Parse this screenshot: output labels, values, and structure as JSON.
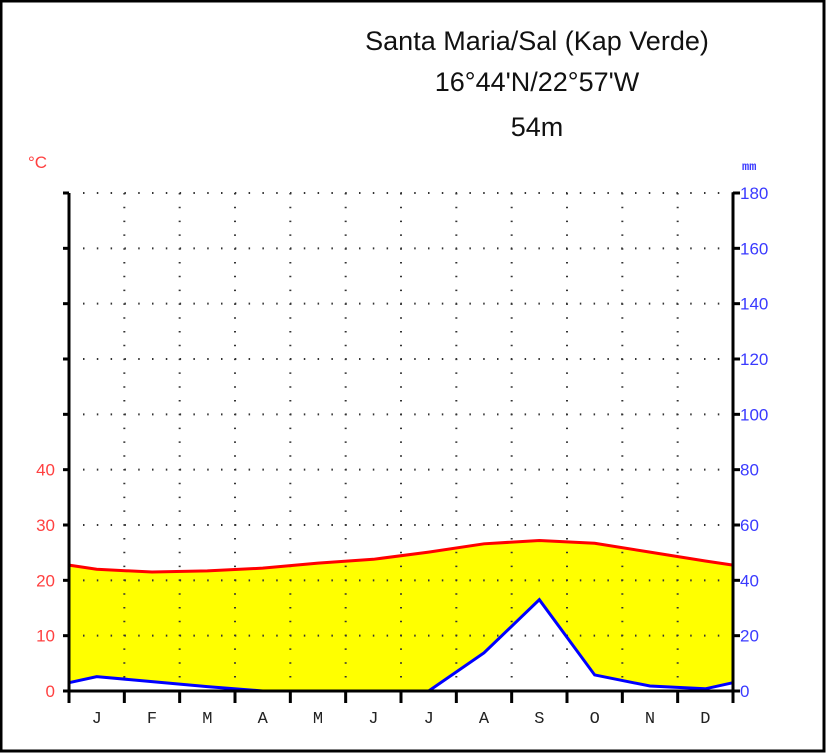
{
  "chart_data": {
    "type": "line",
    "title": "Santa Maria/Sal (Kap Verde)",
    "subtitle": "16°44'N/22°57'W",
    "elevation": "54m",
    "categories": [
      "J",
      "F",
      "M",
      "A",
      "M",
      "J",
      "J",
      "A",
      "S",
      "O",
      "N",
      "D"
    ],
    "left_axis": {
      "unit": "°C",
      "ticks": [
        0,
        10,
        20,
        30,
        40
      ],
      "ylim": [
        0,
        90
      ]
    },
    "right_axis": {
      "unit": "mm",
      "ticks": [
        0,
        20,
        40,
        60,
        80,
        100,
        120,
        140,
        160,
        180
      ],
      "ylim": [
        0,
        180
      ]
    },
    "series": [
      {
        "key": "temperature",
        "axis": "left",
        "color": "#ff0000",
        "values": [
          22.0,
          21.5,
          21.7,
          22.2,
          23.1,
          23.8,
          25.1,
          26.6,
          27.2,
          26.7,
          25.1,
          23.5
        ]
      },
      {
        "key": "precipitation",
        "axis": "right",
        "color": "#0000ff",
        "values": [
          5.2,
          3.4,
          1.6,
          0,
          0,
          0,
          0,
          13.8,
          33,
          5.8,
          1.8,
          0.8
        ]
      }
    ],
    "fill_colors": {
      "arid": "#ffff00"
    },
    "grid": true
  }
}
